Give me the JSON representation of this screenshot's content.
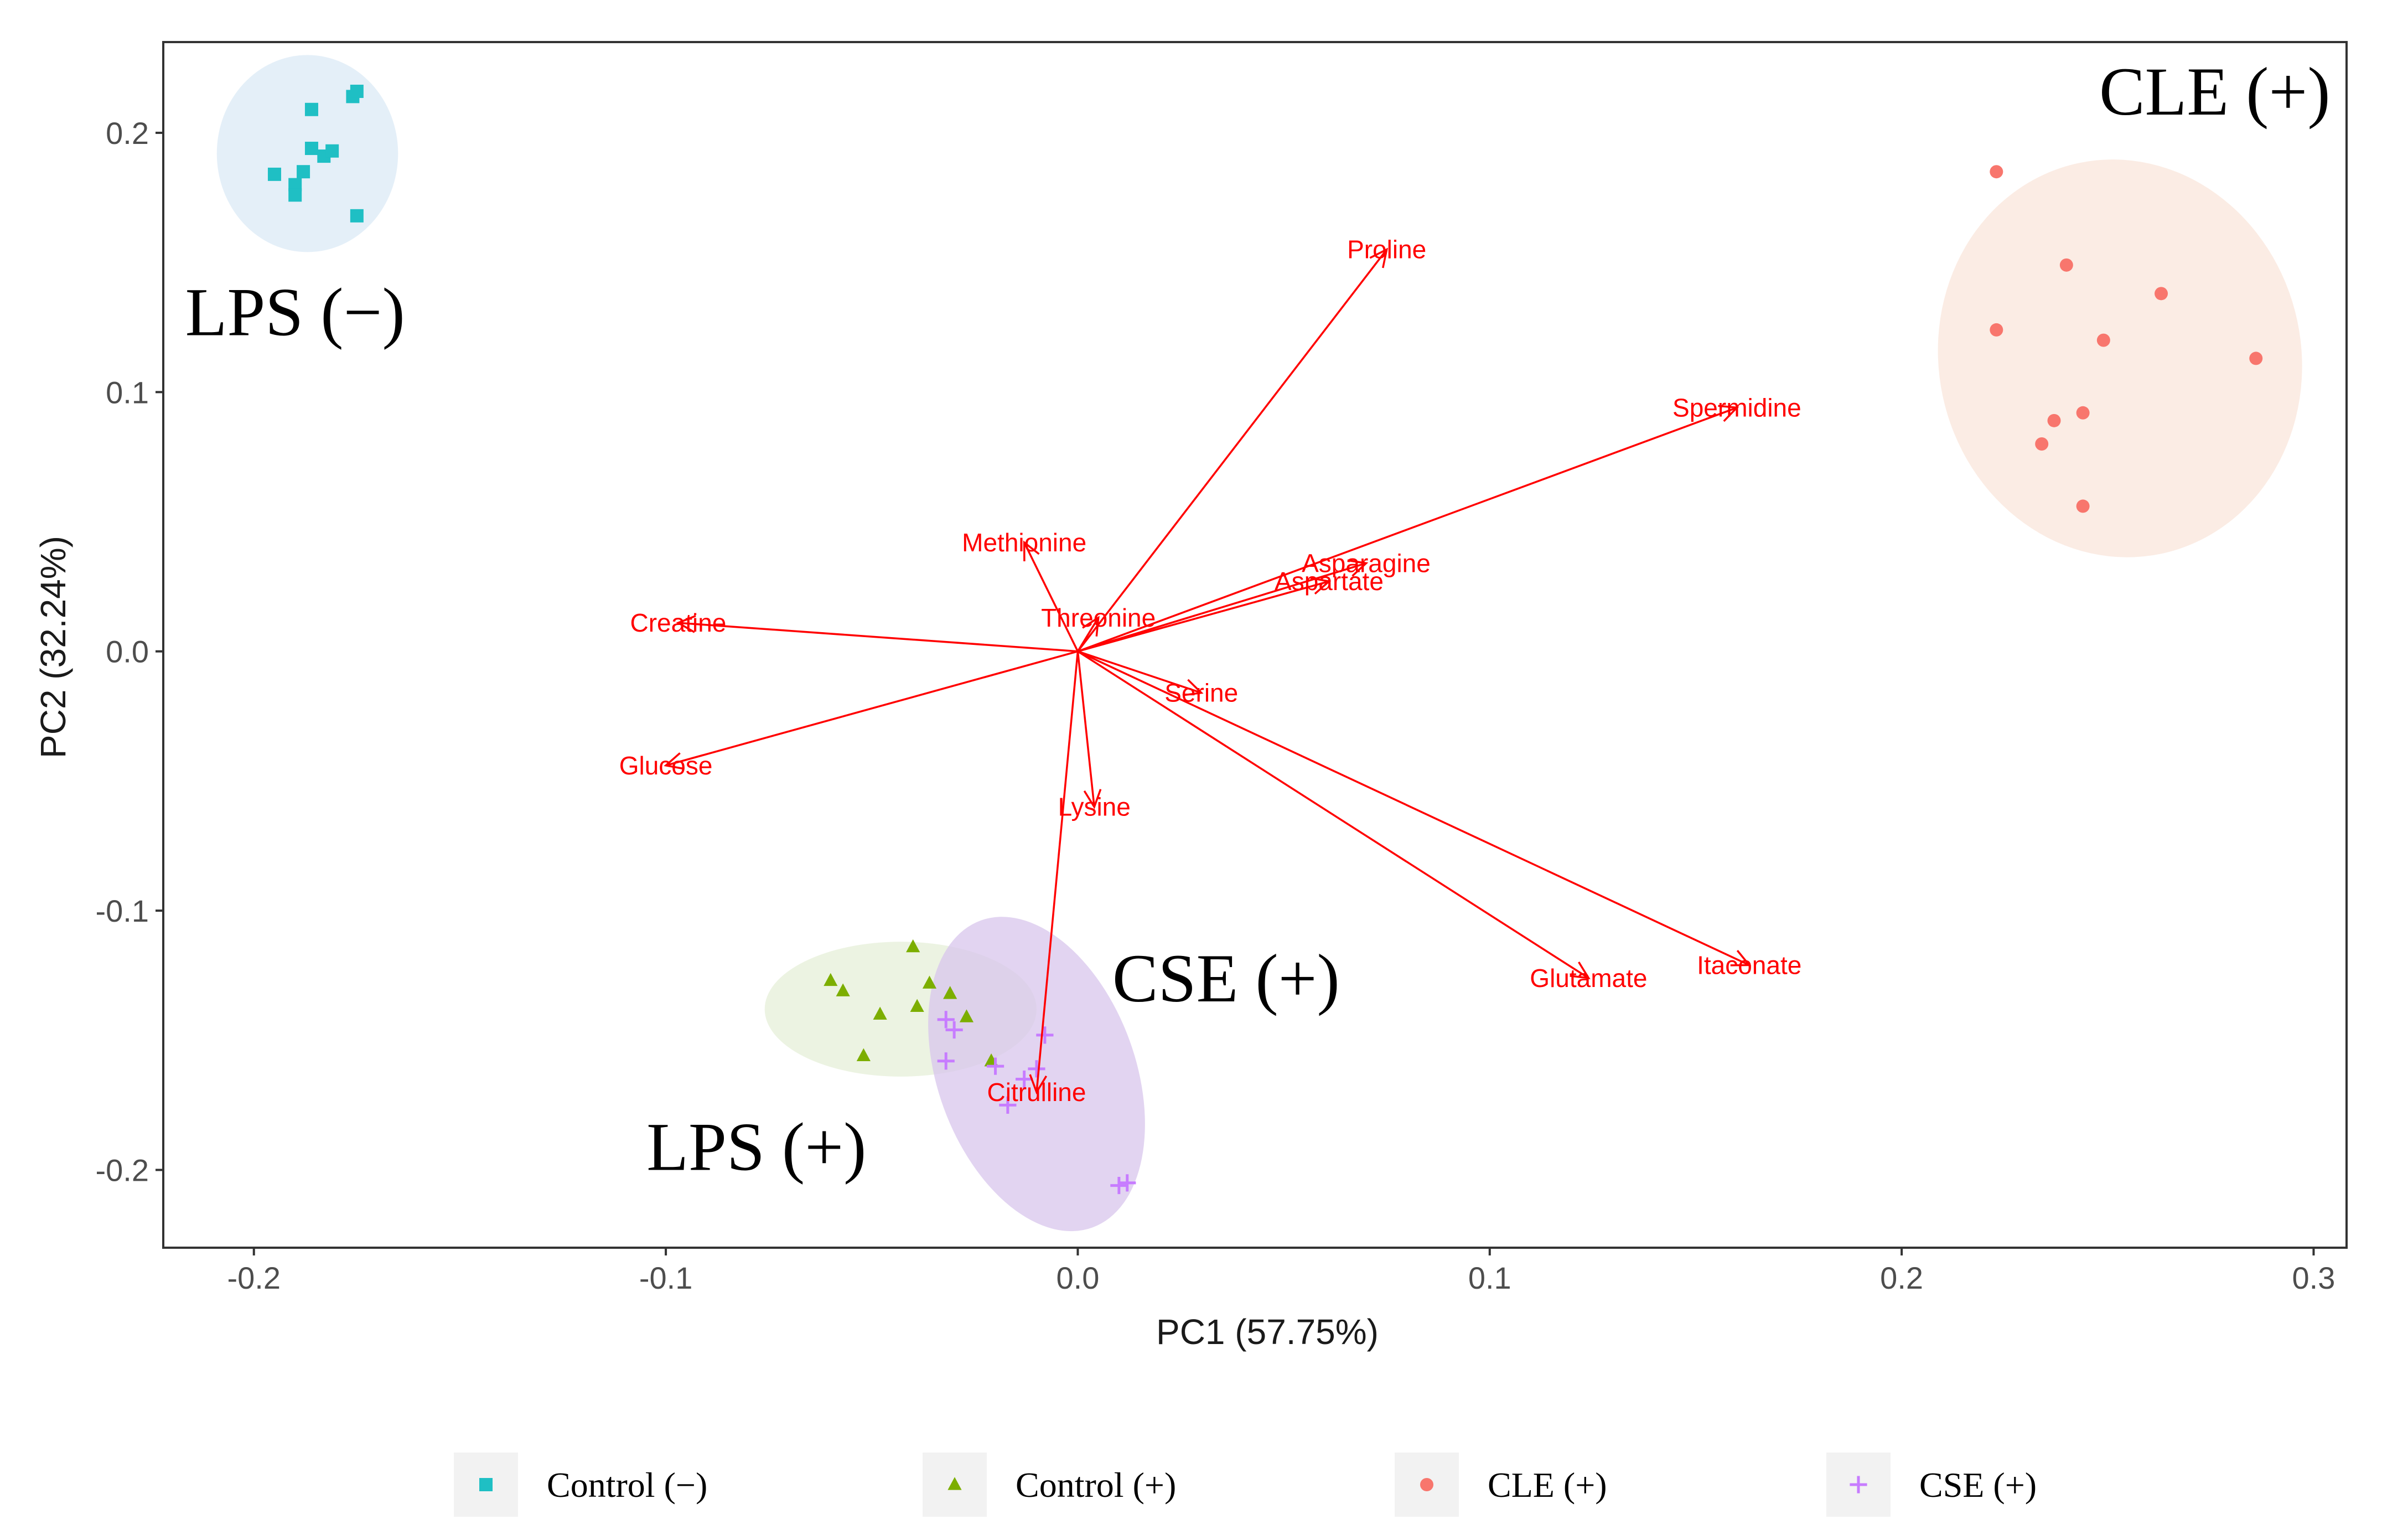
{
  "chart_data": {
    "type": "scatter",
    "subtype": "pca-biplot",
    "xlabel": "PC1 (57.75%)",
    "ylabel": "PC2 (32.24%)",
    "xlim": [
      -0.222,
      0.308
    ],
    "ylim": [
      -0.23,
      0.235
    ],
    "x_ticks": [
      -0.2,
      -0.1,
      0.0,
      0.1,
      0.2,
      0.3
    ],
    "x_tick_labels": [
      "-0.2",
      "-0.1",
      "0.0",
      "0.1",
      "0.2",
      "0.3"
    ],
    "y_ticks": [
      0.2,
      0.1,
      0.0,
      -0.1,
      -0.2
    ],
    "y_tick_labels": [
      "0.2",
      "0.1",
      "0.0",
      "-0.1",
      "-0.2"
    ],
    "grid": false,
    "legend_position": "bottom",
    "series": [
      {
        "name": "Control (−)",
        "marker": "square",
        "color": "#1fbfc4",
        "ellipse_color": "#dbeaf6",
        "annotation": "LPS (−)",
        "ellipse": {
          "center": [
            -0.187,
            0.192
          ],
          "radii": [
            0.022,
            0.038
          ],
          "angle": 0
        },
        "points": [
          [
            -0.195,
            0.184
          ],
          [
            -0.19,
            0.18
          ],
          [
            -0.188,
            0.185
          ],
          [
            -0.19,
            0.176
          ],
          [
            -0.186,
            0.194
          ],
          [
            -0.183,
            0.191
          ],
          [
            -0.181,
            0.193
          ],
          [
            -0.175,
            0.168
          ],
          [
            -0.176,
            0.214
          ],
          [
            -0.175,
            0.216
          ],
          [
            -0.186,
            0.209
          ]
        ]
      },
      {
        "name": "Control (+)",
        "marker": "triangle",
        "color": "#7cae00",
        "ellipse_color": "#e6efd8",
        "annotation": "LPS (+)",
        "ellipse": {
          "center": [
            -0.043,
            -0.138
          ],
          "radii": [
            0.033,
            0.026
          ],
          "angle": 0
        },
        "points": [
          [
            -0.06,
            -0.127
          ],
          [
            -0.057,
            -0.131
          ],
          [
            -0.048,
            -0.14
          ],
          [
            -0.052,
            -0.156
          ],
          [
            -0.04,
            -0.114
          ],
          [
            -0.036,
            -0.128
          ],
          [
            -0.031,
            -0.132
          ],
          [
            -0.039,
            -0.137
          ],
          [
            -0.027,
            -0.141
          ],
          [
            -0.021,
            -0.158
          ]
        ]
      },
      {
        "name": "CLE (+)",
        "marker": "circle",
        "color": "#f8766d",
        "ellipse_color": "#f9e6db",
        "annotation": "CLE (+)",
        "ellipse": {
          "center": [
            0.253,
            0.113
          ],
          "radii": [
            0.044,
            0.077
          ],
          "angle": -12
        },
        "points": [
          [
            0.223,
            0.185
          ],
          [
            0.24,
            0.149
          ],
          [
            0.263,
            0.138
          ],
          [
            0.223,
            0.124
          ],
          [
            0.249,
            0.12
          ],
          [
            0.286,
            0.113
          ],
          [
            0.244,
            0.092
          ],
          [
            0.237,
            0.089
          ],
          [
            0.234,
            0.08
          ],
          [
            0.244,
            0.056
          ]
        ]
      },
      {
        "name": "CSE (+)",
        "marker": "plus",
        "color": "#c77cff",
        "ellipse_color": "#d8c5ec",
        "annotation": "CSE (+)",
        "ellipse": {
          "center": [
            -0.01,
            -0.163
          ],
          "radii": [
            0.024,
            0.063
          ],
          "angle": -20
        },
        "points": [
          [
            -0.032,
            -0.142
          ],
          [
            -0.03,
            -0.146
          ],
          [
            -0.032,
            -0.158
          ],
          [
            -0.02,
            -0.16
          ],
          [
            -0.013,
            -0.165
          ],
          [
            -0.008,
            -0.148
          ],
          [
            -0.01,
            -0.161
          ],
          [
            -0.017,
            -0.175
          ],
          [
            0.01,
            -0.206
          ],
          [
            0.012,
            -0.205
          ]
        ]
      }
    ],
    "loadings": [
      {
        "label": "Proline",
        "x": 0.075,
        "y": 0.155
      },
      {
        "label": "Spermidine",
        "x": 0.16,
        "y": 0.094
      },
      {
        "label": "Asparagine",
        "x": 0.07,
        "y": 0.034
      },
      {
        "label": "Aspartate",
        "x": 0.061,
        "y": 0.027
      },
      {
        "label": "Methionine",
        "x": -0.013,
        "y": 0.042
      },
      {
        "label": "Threonine",
        "x": 0.005,
        "y": 0.013
      },
      {
        "label": "Creatine",
        "x": -0.097,
        "y": 0.011
      },
      {
        "label": "Serine",
        "x": 0.03,
        "y": -0.016
      },
      {
        "label": "Glucose",
        "x": -0.1,
        "y": -0.044
      },
      {
        "label": "Lysine",
        "x": 0.004,
        "y": -0.06
      },
      {
        "label": "Glutamate",
        "x": 0.124,
        "y": -0.126
      },
      {
        "label": "Itaconate",
        "x": 0.163,
        "y": -0.121
      },
      {
        "label": "Citrulline",
        "x": -0.01,
        "y": -0.17
      }
    ],
    "annotations": [
      {
        "text": "LPS (−)",
        "x": -0.19,
        "y": 0.122
      },
      {
        "text": "CLE (+)",
        "x": 0.276,
        "y": 0.207
      },
      {
        "text": "CSE (+)",
        "x": 0.036,
        "y": -0.135
      },
      {
        "text": "LPS (+)",
        "x": -0.078,
        "y": -0.2
      }
    ]
  }
}
